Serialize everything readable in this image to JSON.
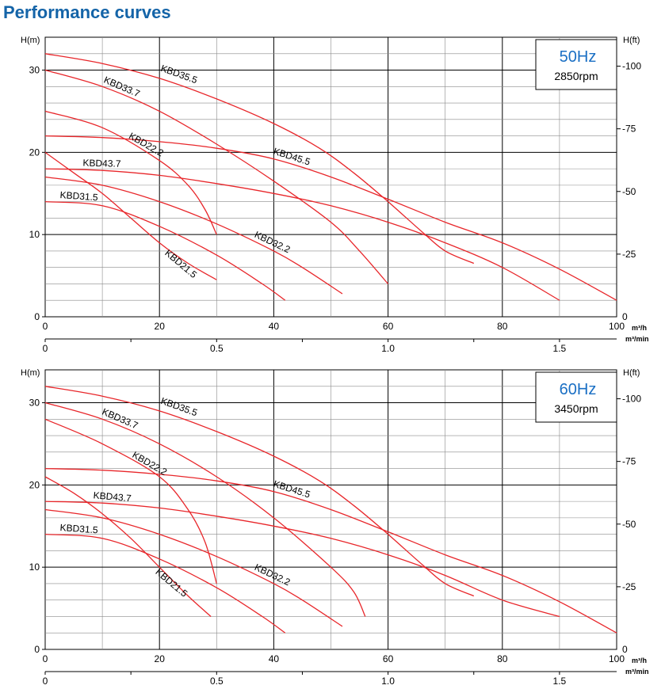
{
  "title": "Performance curves",
  "charts": [
    {
      "frequency": "50Hz",
      "speed": "2850rpm",
      "left_axis_label": "H(m)",
      "right_axis_label": "H(ft)",
      "flow_unit_hour": "m³/h",
      "flow_unit_min": "m³/min"
    },
    {
      "frequency": "60Hz",
      "speed": "3450rpm",
      "left_axis_label": "H(m)",
      "right_axis_label": "H(ft)",
      "flow_unit_hour": "m³/h",
      "flow_unit_min": "m³/min"
    }
  ],
  "chart_data": [
    {
      "type": "line",
      "title": "50Hz",
      "subtitle": "2850rpm",
      "xlabel": "m³/h",
      "x2label": "m³/min",
      "ylabel": "H(m)",
      "y2label": "H(ft)",
      "xlim": [
        0,
        100
      ],
      "ylim": [
        0,
        34
      ],
      "x_ticks": [
        0,
        20,
        40,
        60,
        80,
        100
      ],
      "x2_ticks": [
        "0",
        "0.5",
        "1.0",
        "1.5"
      ],
      "y_ticks": [
        0,
        10,
        20,
        30
      ],
      "y2_ticks": [
        25,
        50,
        75,
        100
      ],
      "grid": true,
      "line_color": "#e8262a",
      "series": [
        {
          "name": "KBD35.5",
          "x": [
            0,
            10,
            20,
            30,
            40,
            48,
            54,
            60,
            66,
            70,
            75
          ],
          "y": [
            32,
            30.8,
            29,
            26.5,
            23.5,
            20.5,
            17.5,
            14,
            10.3,
            8,
            6.5
          ]
        },
        {
          "name": "KBD33.7",
          "x": [
            0,
            10,
            20,
            30,
            40,
            50,
            55,
            60
          ],
          "y": [
            30,
            28,
            25,
            21,
            16.5,
            11.5,
            8,
            4
          ]
        },
        {
          "name": "KBD22.2",
          "x": [
            0,
            10,
            20,
            25,
            28,
            30
          ],
          "y": [
            25,
            23,
            19,
            16,
            13,
            10
          ]
        },
        {
          "name": "KBD45.5",
          "x": [
            0,
            10,
            20,
            30,
            40,
            50,
            60,
            70,
            80,
            90,
            100
          ],
          "y": [
            22,
            21.8,
            21.3,
            20.5,
            19.2,
            17,
            14.3,
            11.5,
            9,
            5.8,
            2
          ]
        },
        {
          "name": "KBD43.7",
          "x": [
            0,
            10,
            20,
            30,
            40,
            50,
            60,
            70,
            80,
            90
          ],
          "y": [
            18,
            17.8,
            17.2,
            16.2,
            15,
            13.5,
            11.5,
            9,
            6,
            2
          ]
        },
        {
          "name": "KBD32.2",
          "x": [
            0,
            10,
            20,
            30,
            40,
            45,
            52
          ],
          "y": [
            17,
            16,
            14,
            11.3,
            8,
            6,
            2.8
          ]
        },
        {
          "name": "KBD31.5",
          "x": [
            0,
            10,
            20,
            30,
            38,
            42
          ],
          "y": [
            14,
            13.5,
            11,
            7.5,
            4,
            2
          ]
        },
        {
          "name": "KBD21.5",
          "x": [
            0,
            5,
            10,
            15,
            20,
            25,
            30
          ],
          "y": [
            20,
            17.5,
            15,
            12,
            9,
            6.5,
            4.5
          ]
        }
      ]
    },
    {
      "type": "line",
      "title": "60Hz",
      "subtitle": "3450rpm",
      "xlabel": "m³/h",
      "x2label": "m³/min",
      "ylabel": "H(m)",
      "y2label": "H(ft)",
      "xlim": [
        0,
        100
      ],
      "ylim": [
        0,
        34
      ],
      "x_ticks": [
        0,
        20,
        40,
        60,
        80,
        100
      ],
      "x2_ticks": [
        "0",
        "0.5",
        "1.0",
        "1.5"
      ],
      "y_ticks": [
        0,
        10,
        20,
        30
      ],
      "y2_ticks": [
        25,
        50,
        75,
        100
      ],
      "grid": true,
      "line_color": "#e8262a",
      "series": [
        {
          "name": "KBD35.5",
          "x": [
            0,
            10,
            20,
            30,
            40,
            48,
            54,
            60,
            66,
            70,
            75
          ],
          "y": [
            32,
            30.8,
            29,
            26.5,
            23.5,
            20.5,
            17.5,
            14,
            10.3,
            8,
            6.5
          ]
        },
        {
          "name": "KBD33.7",
          "x": [
            0,
            10,
            20,
            30,
            40,
            50,
            54,
            56
          ],
          "y": [
            30,
            28,
            25,
            21,
            16,
            10,
            7,
            4
          ]
        },
        {
          "name": "KBD22.2",
          "x": [
            0,
            10,
            20,
            25,
            28,
            30
          ],
          "y": [
            28,
            25,
            21,
            17,
            13,
            8
          ]
        },
        {
          "name": "KBD45.5",
          "x": [
            0,
            10,
            20,
            30,
            40,
            50,
            60,
            70,
            80,
            90,
            100
          ],
          "y": [
            22,
            21.8,
            21.3,
            20.5,
            19.2,
            17,
            14.3,
            11.5,
            9,
            5.8,
            2
          ]
        },
        {
          "name": "KBD43.7",
          "x": [
            0,
            10,
            20,
            30,
            40,
            50,
            60,
            70,
            80,
            90
          ],
          "y": [
            18,
            17.8,
            17.2,
            16.2,
            15,
            13.5,
            11.5,
            9,
            6,
            4
          ]
        },
        {
          "name": "KBD32.2",
          "x": [
            0,
            10,
            20,
            30,
            40,
            45,
            52
          ],
          "y": [
            17,
            16,
            14,
            11.3,
            8,
            6,
            2.8
          ]
        },
        {
          "name": "KBD31.5",
          "x": [
            0,
            10,
            20,
            30,
            38,
            42
          ],
          "y": [
            14,
            13.5,
            11,
            7.5,
            4,
            2
          ]
        },
        {
          "name": "KBD21.5",
          "x": [
            0,
            5,
            10,
            15,
            20,
            25,
            29
          ],
          "y": [
            21,
            19,
            16.5,
            13.5,
            10,
            6.5,
            4
          ]
        }
      ]
    }
  ]
}
